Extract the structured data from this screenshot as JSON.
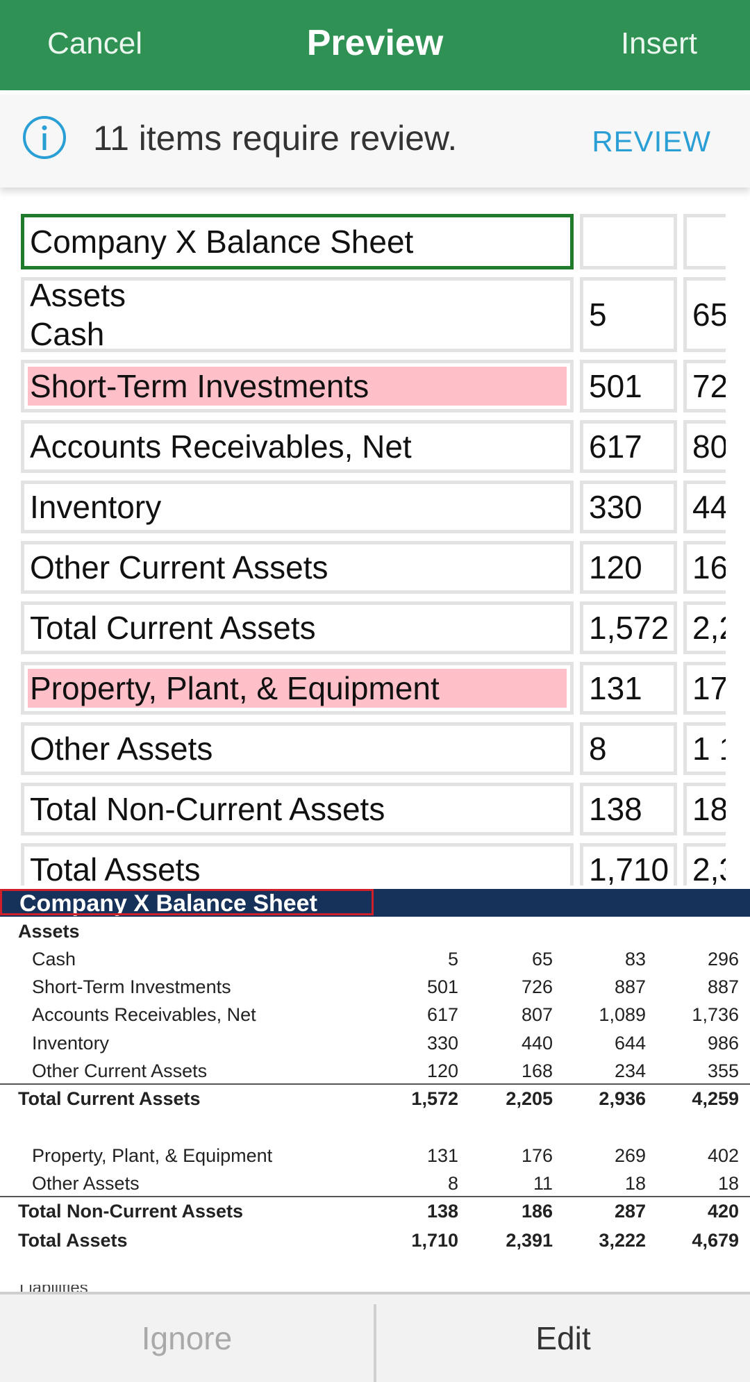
{
  "header": {
    "cancel_label": "Cancel",
    "title": "Preview",
    "insert_label": "Insert"
  },
  "banner": {
    "message": "11 items require review.",
    "review_label": "REVIEW",
    "icon": "info-icon"
  },
  "grid": {
    "rows": [
      {
        "label": "Company X Balance Sheet",
        "c1": "",
        "c2": "",
        "selected": true,
        "flagged": false
      },
      {
        "label": "Assets\nCash",
        "c1": "5",
        "c2": "65",
        "selected": false,
        "flagged": false
      },
      {
        "label": "Short-Term Investments",
        "c1": "501",
        "c2": "72",
        "selected": false,
        "flagged": true
      },
      {
        "label": "Accounts Receivables, Net",
        "c1": "617",
        "c2": "80",
        "selected": false,
        "flagged": false
      },
      {
        "label": "Inventory",
        "c1": "330",
        "c2": "44",
        "selected": false,
        "flagged": false
      },
      {
        "label": "Other Current Assets",
        "c1": "120",
        "c2": "16",
        "selected": false,
        "flagged": false
      },
      {
        "label": "Total Current Assets",
        "c1": "1,572",
        "c2": "2,2",
        "selected": false,
        "flagged": false
      },
      {
        "label": "Property, Plant, & Equipment",
        "c1": "131",
        "c2": "17",
        "selected": false,
        "flagged": true
      },
      {
        "label": "Other Assets",
        "c1": "8",
        "c2": "1 1",
        "selected": false,
        "flagged": false
      },
      {
        "label": "Total Non-Current Assets",
        "c1": "138",
        "c2": "18",
        "selected": false,
        "flagged": false
      },
      {
        "label": "Total Assets",
        "c1": "1,710",
        "c2": "2,3",
        "selected": false,
        "flagged": false
      }
    ]
  },
  "source": {
    "title": "Company X Balance Sheet",
    "section": "Assets",
    "rows": [
      {
        "label": "Cash",
        "values": [
          "5",
          "65",
          "83",
          "296"
        ],
        "bold": false,
        "indent": true
      },
      {
        "label": "Short-Term Investments",
        "values": [
          "501",
          "726",
          "887",
          "887"
        ],
        "bold": false,
        "indent": true
      },
      {
        "label": "Accounts Receivables, Net",
        "values": [
          "617",
          "807",
          "1,089",
          "1,736"
        ],
        "bold": false,
        "indent": true
      },
      {
        "label": "Inventory",
        "values": [
          "330",
          "440",
          "644",
          "986"
        ],
        "bold": false,
        "indent": true
      },
      {
        "label": "Other Current Assets",
        "values": [
          "120",
          "168",
          "234",
          "355"
        ],
        "bold": false,
        "indent": true
      },
      {
        "label": "Total Current Assets",
        "values": [
          "1,572",
          "2,205",
          "2,936",
          "4,259"
        ],
        "bold": true,
        "indent": false
      },
      {
        "label": "Property, Plant, & Equipment",
        "values": [
          "131",
          "176",
          "269",
          "402"
        ],
        "bold": false,
        "indent": true
      },
      {
        "label": "Other Assets",
        "values": [
          "8",
          "11",
          "18",
          "18"
        ],
        "bold": false,
        "indent": true
      },
      {
        "label": "Total Non-Current Assets",
        "values": [
          "138",
          "186",
          "287",
          "420"
        ],
        "bold": true,
        "indent": false
      },
      {
        "label": "Total Assets",
        "values": [
          "1,710",
          "2,391",
          "3,222",
          "4,679"
        ],
        "bold": true,
        "indent": false
      }
    ]
  },
  "footer": {
    "ignore_label": "Ignore",
    "edit_label": "Edit"
  },
  "colors": {
    "header_green": "#2f9254",
    "review_blue": "#2a9fd6",
    "flag_pink": "#ffc0c9",
    "source_title_navy": "#17325a"
  }
}
